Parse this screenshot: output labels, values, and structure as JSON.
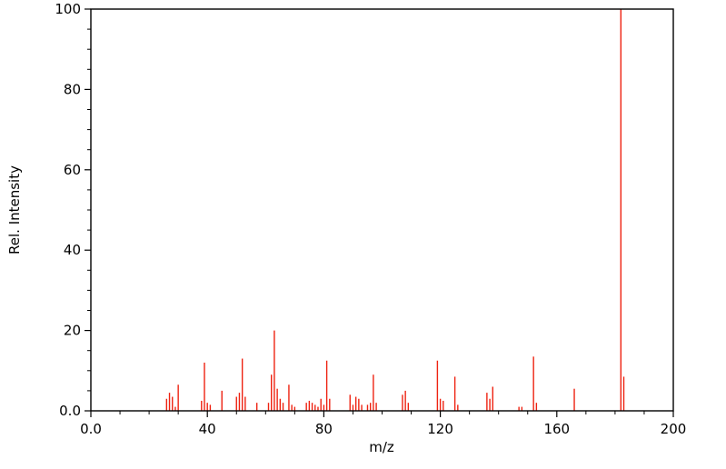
{
  "figure": {
    "background": "#ffffff",
    "frame_color": "#000000"
  },
  "chart_data": {
    "type": "bar",
    "subtype": "mass-spectrum-stick-plot",
    "title": "",
    "xlabel": "m/z",
    "ylabel": "Rel. Intensity",
    "xlim": [
      0,
      200
    ],
    "ylim": [
      0,
      100
    ],
    "grid": false,
    "legend": "none",
    "color": "#ee2211",
    "x_ticks": [
      {
        "value": 0,
        "label": "0.0"
      },
      {
        "value": 40,
        "label": "40"
      },
      {
        "value": 80,
        "label": "80"
      },
      {
        "value": 120,
        "label": "120"
      },
      {
        "value": 160,
        "label": "160"
      },
      {
        "value": 200,
        "label": "200"
      }
    ],
    "y_ticks": [
      {
        "value": 0,
        "label": "0.0"
      },
      {
        "value": 20,
        "label": "20"
      },
      {
        "value": 40,
        "label": "40"
      },
      {
        "value": 60,
        "label": "60"
      },
      {
        "value": 80,
        "label": "80"
      },
      {
        "value": 100,
        "label": "100"
      }
    ],
    "x_minor_step": 10,
    "y_minor_step": 5,
    "peaks": [
      {
        "mz": 26,
        "intensity": 3
      },
      {
        "mz": 27,
        "intensity": 4.5
      },
      {
        "mz": 28,
        "intensity": 3.5
      },
      {
        "mz": 29,
        "intensity": 1
      },
      {
        "mz": 30,
        "intensity": 6.5
      },
      {
        "mz": 38,
        "intensity": 2.5
      },
      {
        "mz": 39,
        "intensity": 12
      },
      {
        "mz": 40,
        "intensity": 2
      },
      {
        "mz": 41,
        "intensity": 1.5
      },
      {
        "mz": 45,
        "intensity": 5
      },
      {
        "mz": 50,
        "intensity": 3.5
      },
      {
        "mz": 51,
        "intensity": 4.5
      },
      {
        "mz": 52,
        "intensity": 13
      },
      {
        "mz": 53,
        "intensity": 3.5
      },
      {
        "mz": 57,
        "intensity": 2
      },
      {
        "mz": 61,
        "intensity": 2
      },
      {
        "mz": 62,
        "intensity": 9
      },
      {
        "mz": 63,
        "intensity": 20
      },
      {
        "mz": 64,
        "intensity": 5.5
      },
      {
        "mz": 65,
        "intensity": 3
      },
      {
        "mz": 66,
        "intensity": 2
      },
      {
        "mz": 68,
        "intensity": 6.5
      },
      {
        "mz": 69,
        "intensity": 1.5
      },
      {
        "mz": 70,
        "intensity": 1
      },
      {
        "mz": 74,
        "intensity": 2
      },
      {
        "mz": 75,
        "intensity": 2.5
      },
      {
        "mz": 76,
        "intensity": 2
      },
      {
        "mz": 77,
        "intensity": 1.5
      },
      {
        "mz": 78,
        "intensity": 1
      },
      {
        "mz": 79,
        "intensity": 3
      },
      {
        "mz": 80,
        "intensity": 1.5
      },
      {
        "mz": 81,
        "intensity": 12.5
      },
      {
        "mz": 82,
        "intensity": 3
      },
      {
        "mz": 89,
        "intensity": 4
      },
      {
        "mz": 90,
        "intensity": 1.5
      },
      {
        "mz": 91,
        "intensity": 3.5
      },
      {
        "mz": 92,
        "intensity": 3
      },
      {
        "mz": 93,
        "intensity": 1.5
      },
      {
        "mz": 95,
        "intensity": 1.5
      },
      {
        "mz": 96,
        "intensity": 2
      },
      {
        "mz": 97,
        "intensity": 9
      },
      {
        "mz": 98,
        "intensity": 2
      },
      {
        "mz": 107,
        "intensity": 4
      },
      {
        "mz": 108,
        "intensity": 5
      },
      {
        "mz": 109,
        "intensity": 2
      },
      {
        "mz": 119,
        "intensity": 12.5
      },
      {
        "mz": 120,
        "intensity": 3
      },
      {
        "mz": 121,
        "intensity": 2.5
      },
      {
        "mz": 125,
        "intensity": 8.5
      },
      {
        "mz": 126,
        "intensity": 1.5
      },
      {
        "mz": 136,
        "intensity": 4.5
      },
      {
        "mz": 137,
        "intensity": 3
      },
      {
        "mz": 138,
        "intensity": 6
      },
      {
        "mz": 147,
        "intensity": 1
      },
      {
        "mz": 148,
        "intensity": 1
      },
      {
        "mz": 152,
        "intensity": 13.5
      },
      {
        "mz": 153,
        "intensity": 2
      },
      {
        "mz": 166,
        "intensity": 5.5
      },
      {
        "mz": 182,
        "intensity": 100
      },
      {
        "mz": 183,
        "intensity": 8.5
      }
    ]
  }
}
